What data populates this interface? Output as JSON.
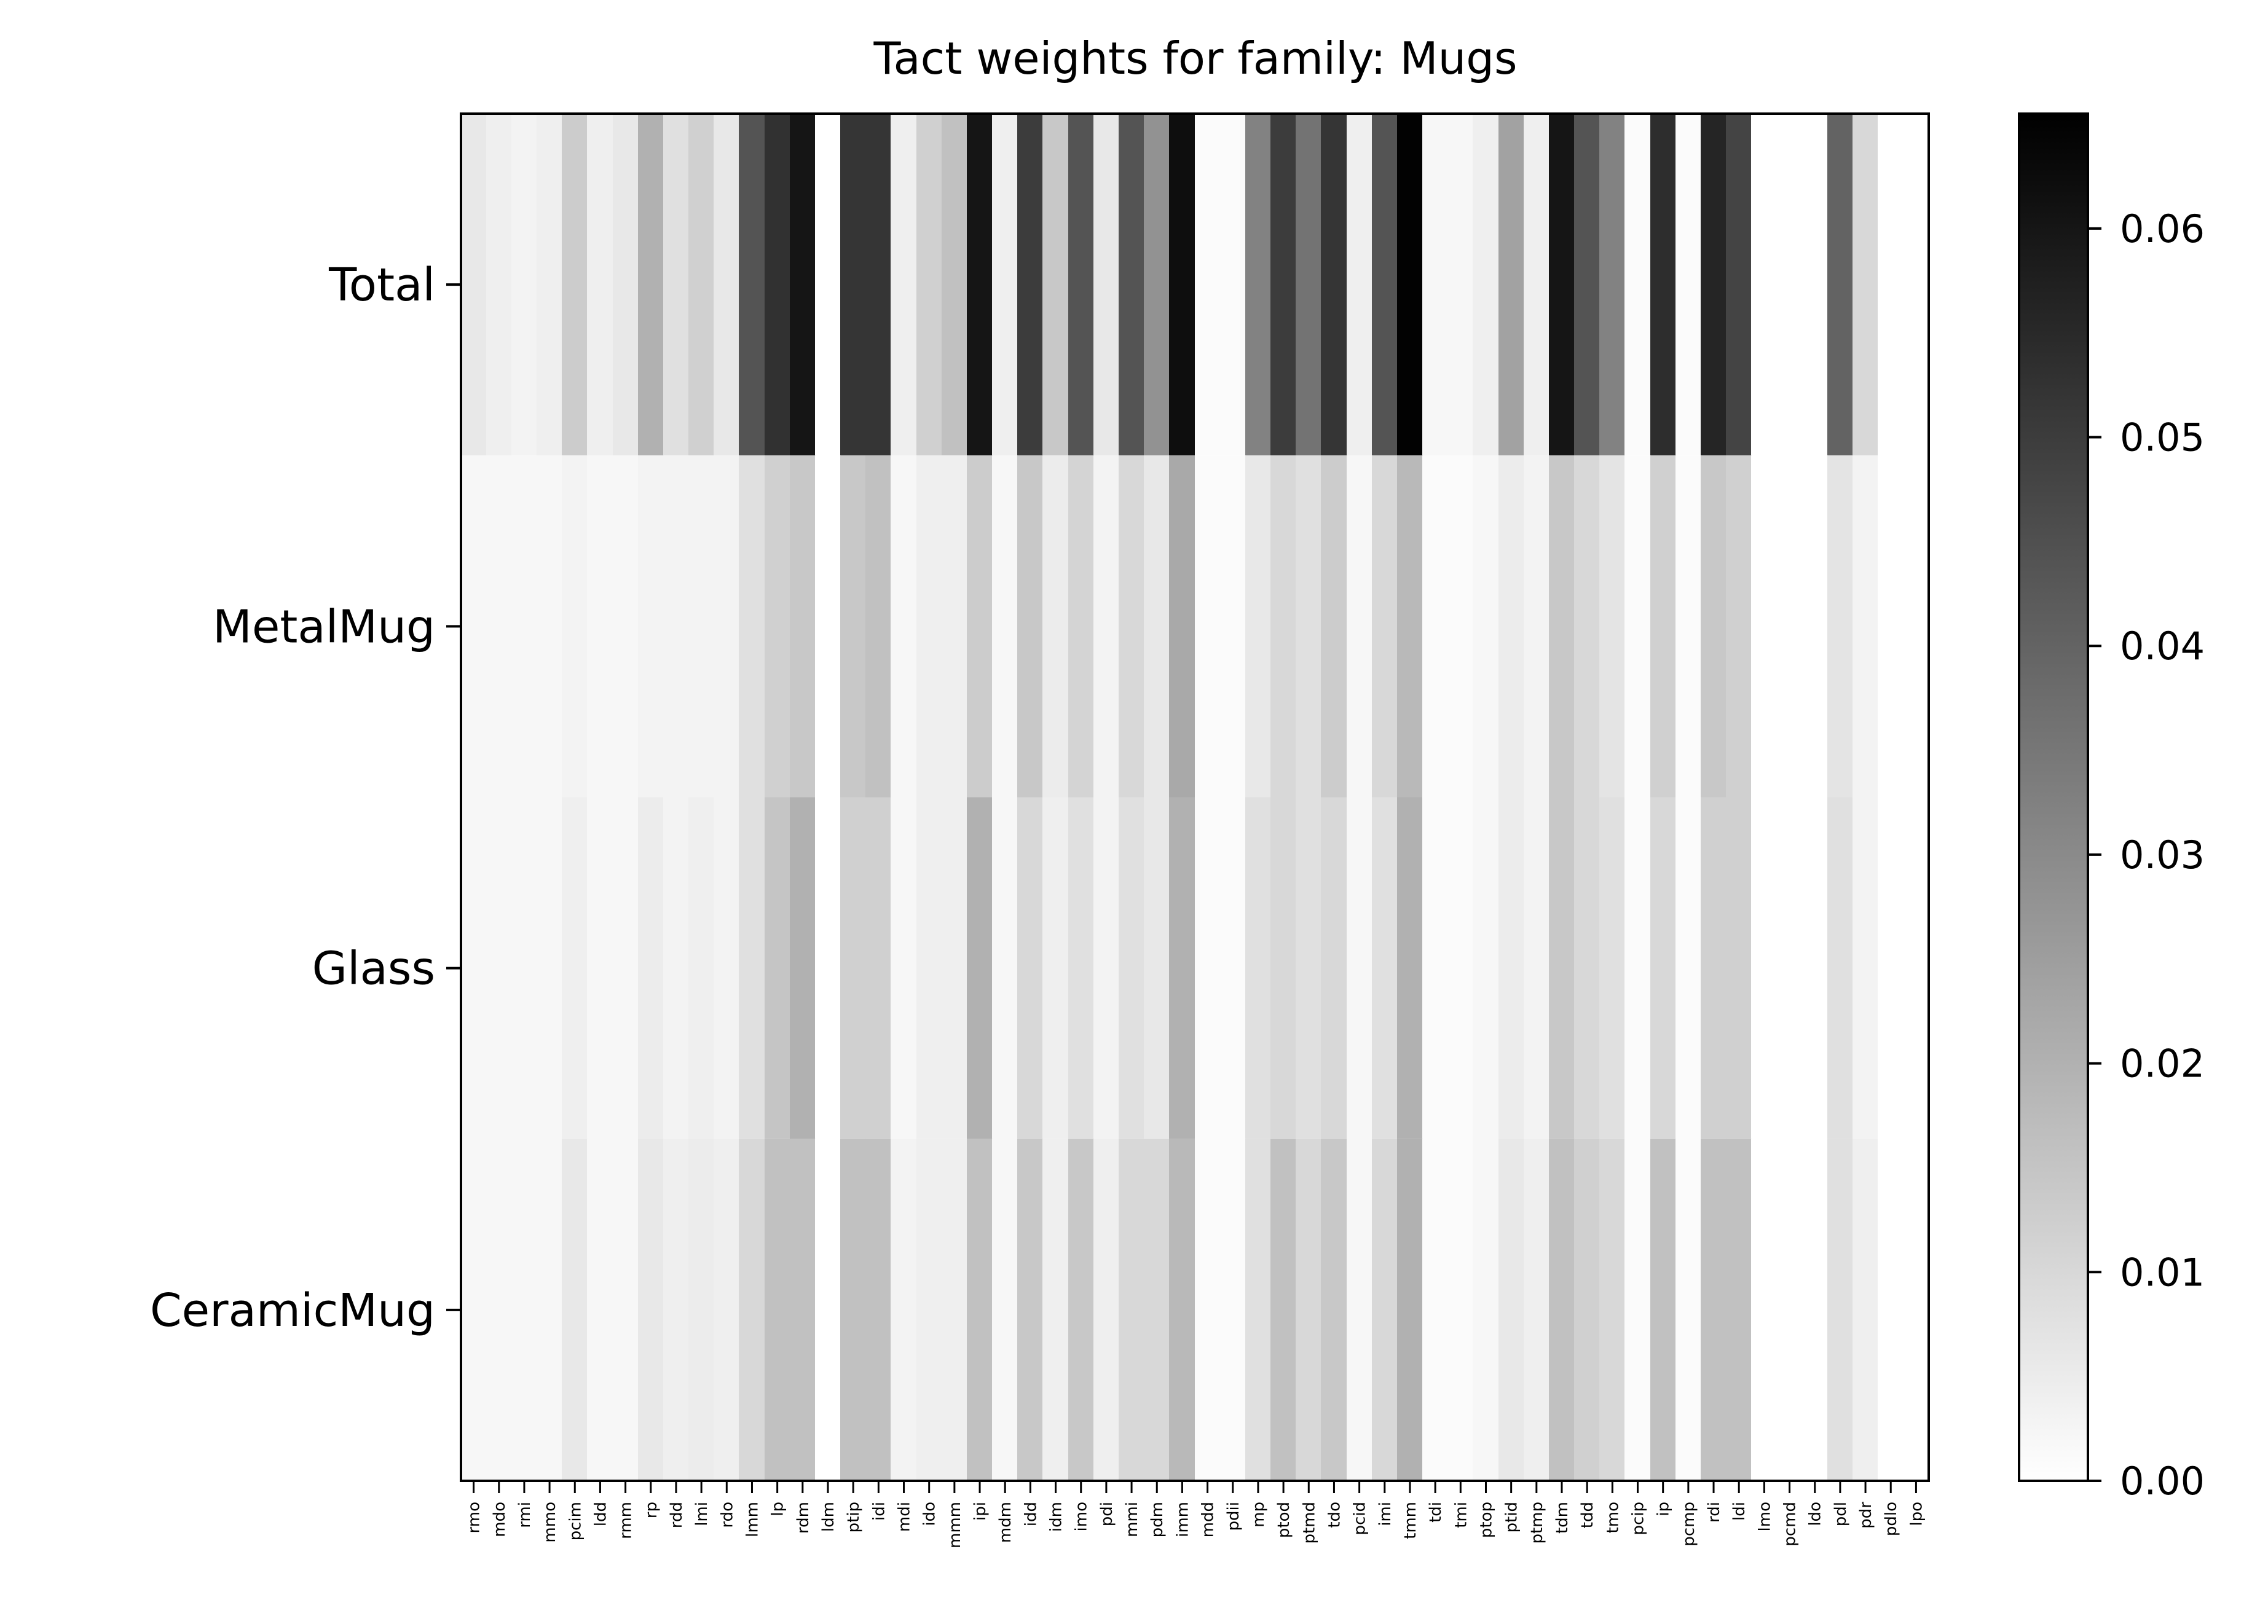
{
  "chart_data": {
    "type": "heatmap",
    "title": "Tact weights for family: Mugs",
    "rows": [
      "Total",
      "MetalMug",
      "Glass",
      "CeramicMug"
    ],
    "columns": [
      "rmo",
      "mdo",
      "rmi",
      "mmo",
      "pcim",
      "ldd",
      "rmm",
      "rp",
      "rdd",
      "lmi",
      "rdo",
      "lmm",
      "lp",
      "rdm",
      "ldm",
      "ptip",
      "idi",
      "mdi",
      "ido",
      "mmm",
      "ipi",
      "mdm",
      "idd",
      "idm",
      "imo",
      "pdi",
      "mmi",
      "pdm",
      "imm",
      "mdd",
      "pdii",
      "mp",
      "ptod",
      "ptmd",
      "tdo",
      "pcid",
      "imi",
      "tmm",
      "tdi",
      "tmi",
      "ptop",
      "ptid",
      "ptmp",
      "tdm",
      "tdd",
      "tmo",
      "pcip",
      "ip",
      "pcmp",
      "rdi",
      "ldi",
      "lmo",
      "pcmd",
      "ldo",
      "pdl",
      "pdr",
      "pdlo",
      "lpo"
    ],
    "values": [
      [
        0.006,
        0.004,
        0.003,
        0.004,
        0.013,
        0.004,
        0.006,
        0.02,
        0.008,
        0.012,
        0.006,
        0.044,
        0.053,
        0.06,
        0.0,
        0.052,
        0.052,
        0.004,
        0.012,
        0.016,
        0.06,
        0.004,
        0.05,
        0.014,
        0.044,
        0.006,
        0.044,
        0.028,
        0.062,
        0.001,
        0.001,
        0.032,
        0.05,
        0.036,
        0.052,
        0.004,
        0.044,
        0.065,
        0.002,
        0.002,
        0.004,
        0.024,
        0.004,
        0.06,
        0.044,
        0.032,
        0.001,
        0.054,
        0.001,
        0.056,
        0.048,
        0.0,
        0.0,
        0.0,
        0.04,
        0.01,
        0.0,
        0.0
      ],
      [
        0.002,
        0.002,
        0.002,
        0.002,
        0.003,
        0.002,
        0.002,
        0.003,
        0.003,
        0.003,
        0.003,
        0.008,
        0.012,
        0.014,
        0.0,
        0.014,
        0.016,
        0.002,
        0.004,
        0.004,
        0.013,
        0.002,
        0.014,
        0.005,
        0.011,
        0.003,
        0.01,
        0.006,
        0.022,
        0.001,
        0.001,
        0.006,
        0.01,
        0.008,
        0.013,
        0.002,
        0.01,
        0.018,
        0.001,
        0.001,
        0.002,
        0.005,
        0.003,
        0.014,
        0.01,
        0.007,
        0.001,
        0.012,
        0.001,
        0.014,
        0.012,
        0.0,
        0.0,
        0.0,
        0.007,
        0.003,
        0.0,
        0.0
      ],
      [
        0.002,
        0.002,
        0.002,
        0.002,
        0.004,
        0.002,
        0.002,
        0.005,
        0.003,
        0.004,
        0.003,
        0.008,
        0.015,
        0.02,
        0.0,
        0.012,
        0.012,
        0.002,
        0.004,
        0.004,
        0.02,
        0.002,
        0.01,
        0.004,
        0.008,
        0.003,
        0.008,
        0.006,
        0.02,
        0.001,
        0.001,
        0.008,
        0.01,
        0.008,
        0.01,
        0.002,
        0.008,
        0.02,
        0.001,
        0.001,
        0.002,
        0.005,
        0.003,
        0.014,
        0.01,
        0.008,
        0.001,
        0.01,
        0.001,
        0.012,
        0.012,
        0.0,
        0.0,
        0.0,
        0.008,
        0.003,
        0.0,
        0.0
      ],
      [
        0.002,
        0.002,
        0.002,
        0.002,
        0.006,
        0.002,
        0.002,
        0.006,
        0.004,
        0.005,
        0.004,
        0.01,
        0.016,
        0.016,
        0.0,
        0.016,
        0.016,
        0.003,
        0.004,
        0.004,
        0.016,
        0.002,
        0.014,
        0.004,
        0.014,
        0.004,
        0.01,
        0.01,
        0.018,
        0.001,
        0.001,
        0.008,
        0.016,
        0.01,
        0.014,
        0.002,
        0.01,
        0.02,
        0.001,
        0.001,
        0.002,
        0.006,
        0.004,
        0.016,
        0.012,
        0.01,
        0.001,
        0.016,
        0.001,
        0.016,
        0.016,
        0.0,
        0.0,
        0.0,
        0.008,
        0.004,
        0.0,
        0.0
      ]
    ],
    "colorbar": {
      "min": 0.0,
      "max": 0.0655,
      "ticks": [
        "0.00",
        "0.01",
        "0.02",
        "0.03",
        "0.04",
        "0.05",
        "0.06"
      ],
      "tick_values": [
        0,
        0.01,
        0.02,
        0.03,
        0.04,
        0.05,
        0.06
      ],
      "colormap": "gray_r"
    },
    "xlabel": "",
    "ylabel": ""
  }
}
